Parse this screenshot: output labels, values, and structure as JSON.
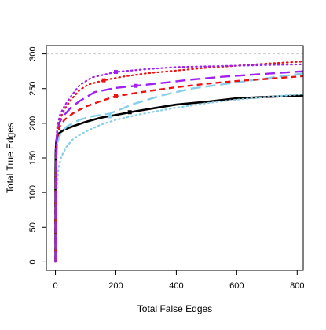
{
  "chart_data": {
    "type": "line",
    "title": "",
    "xlabel": "Total False Edges",
    "ylabel": "Total True Edges",
    "xlim": [
      -30,
      820
    ],
    "ylim": [
      -12,
      312
    ],
    "x_ticks": [
      0,
      200,
      400,
      600,
      800
    ],
    "y_ticks": [
      0,
      50,
      100,
      150,
      200,
      250,
      300
    ],
    "reference_line": {
      "y": 300,
      "color": "#cccccc",
      "style": "dashed"
    },
    "grid": false,
    "legend": "none",
    "series": [
      {
        "color": "#000000",
        "dash": "solid",
        "width": 2.6,
        "points": [
          [
            0,
            0
          ],
          [
            0,
            60
          ],
          [
            0,
            120
          ],
          [
            1,
            160
          ],
          [
            3,
            175
          ],
          [
            10,
            185
          ],
          [
            30,
            191
          ],
          [
            60,
            196
          ],
          [
            100,
            202
          ],
          [
            150,
            208
          ],
          [
            200,
            212
          ],
          [
            260,
            217
          ],
          [
            330,
            222
          ],
          [
            400,
            227
          ],
          [
            500,
            231
          ],
          [
            600,
            236
          ],
          [
            700,
            238
          ],
          [
            820,
            240
          ]
        ],
        "marker": [
          246,
          216
        ]
      },
      {
        "color": "#000000",
        "dash": "dashed",
        "width": 2.4,
        "points": [
          [
            0,
            0
          ],
          [
            0,
            80
          ],
          [
            1,
            150
          ],
          [
            2,
            170
          ],
          [
            4,
            178
          ],
          [
            8,
            185
          ],
          [
            15,
            190
          ]
        ],
        "marker": null
      },
      {
        "color": "#87ceeb",
        "dash": "dotted",
        "width": 2.2,
        "points": [
          [
            0,
            0
          ],
          [
            2,
            70
          ],
          [
            5,
            110
          ],
          [
            10,
            135
          ],
          [
            20,
            152
          ],
          [
            35,
            165
          ],
          [
            60,
            178
          ],
          [
            100,
            188
          ],
          [
            150,
            198
          ],
          [
            200,
            205
          ],
          [
            280,
            213
          ],
          [
            380,
            221
          ],
          [
            500,
            229
          ],
          [
            600,
            234
          ],
          [
            700,
            238
          ],
          [
            820,
            242
          ]
        ],
        "marker": null
      },
      {
        "color": "#87ceeb",
        "dash": "longdash",
        "width": 2.4,
        "points": [
          [
            0,
            0
          ],
          [
            1,
            100
          ],
          [
            3,
            150
          ],
          [
            8,
            175
          ],
          [
            20,
            188
          ],
          [
            40,
            196
          ],
          [
            80,
            205
          ],
          [
            120,
            210
          ],
          [
            180,
            214
          ],
          [
            260,
            228
          ],
          [
            350,
            240
          ],
          [
            450,
            250
          ],
          [
            550,
            256
          ],
          [
            650,
            262
          ],
          [
            820,
            272
          ]
        ],
        "marker": [
          180,
          210
        ]
      },
      {
        "color": "#ee1111",
        "dash": "dashed",
        "width": 2.4,
        "points": [
          [
            0,
            0
          ],
          [
            1,
            100
          ],
          [
            2,
            150
          ],
          [
            6,
            180
          ],
          [
            15,
            196
          ],
          [
            30,
            205
          ],
          [
            60,
            215
          ],
          [
            100,
            224
          ],
          [
            150,
            232
          ],
          [
            200,
            239
          ],
          [
            300,
            246
          ],
          [
            400,
            252
          ],
          [
            500,
            257
          ],
          [
            600,
            261
          ],
          [
            700,
            264
          ],
          [
            820,
            268
          ]
        ],
        "marker": [
          200,
          239
        ]
      },
      {
        "color": "#a020f0",
        "dash": "longdash",
        "width": 2.4,
        "points": [
          [
            0,
            0
          ],
          [
            1,
            100
          ],
          [
            2,
            150
          ],
          [
            5,
            182
          ],
          [
            12,
            200
          ],
          [
            25,
            210
          ],
          [
            50,
            222
          ],
          [
            80,
            232
          ],
          [
            130,
            245
          ],
          [
            200,
            251
          ],
          [
            266,
            254
          ],
          [
            350,
            258
          ],
          [
            450,
            263
          ],
          [
            550,
            267
          ],
          [
            650,
            270
          ],
          [
            750,
            273
          ],
          [
            820,
            275
          ]
        ],
        "marker": [
          266,
          254
        ]
      },
      {
        "color": "#ee1111",
        "dash": "dotted",
        "width": 2.2,
        "points": [
          [
            0,
            0
          ],
          [
            1,
            120
          ],
          [
            2,
            160
          ],
          [
            6,
            190
          ],
          [
            15,
            206
          ],
          [
            30,
            220
          ],
          [
            50,
            233
          ],
          [
            80,
            248
          ],
          [
            110,
            256
          ],
          [
            160,
            262
          ],
          [
            220,
            267
          ],
          [
            300,
            272
          ],
          [
            400,
            276
          ],
          [
            500,
            280
          ],
          [
            600,
            283
          ],
          [
            700,
            286
          ],
          [
            820,
            289
          ]
        ],
        "marker": [
          160,
          262
        ]
      },
      {
        "color": "#a020f0",
        "dash": "dotted",
        "width": 2.2,
        "points": [
          [
            0,
            0
          ],
          [
            1,
            120
          ],
          [
            2,
            165
          ],
          [
            6,
            195
          ],
          [
            15,
            212
          ],
          [
            30,
            225
          ],
          [
            50,
            238
          ],
          [
            80,
            255
          ],
          [
            120,
            266
          ],
          [
            200,
            274
          ],
          [
            300,
            278
          ],
          [
            400,
            281
          ],
          [
            500,
            282
          ],
          [
            600,
            283
          ],
          [
            700,
            284
          ],
          [
            820,
            285
          ]
        ],
        "marker": [
          200,
          274
        ]
      }
    ]
  }
}
